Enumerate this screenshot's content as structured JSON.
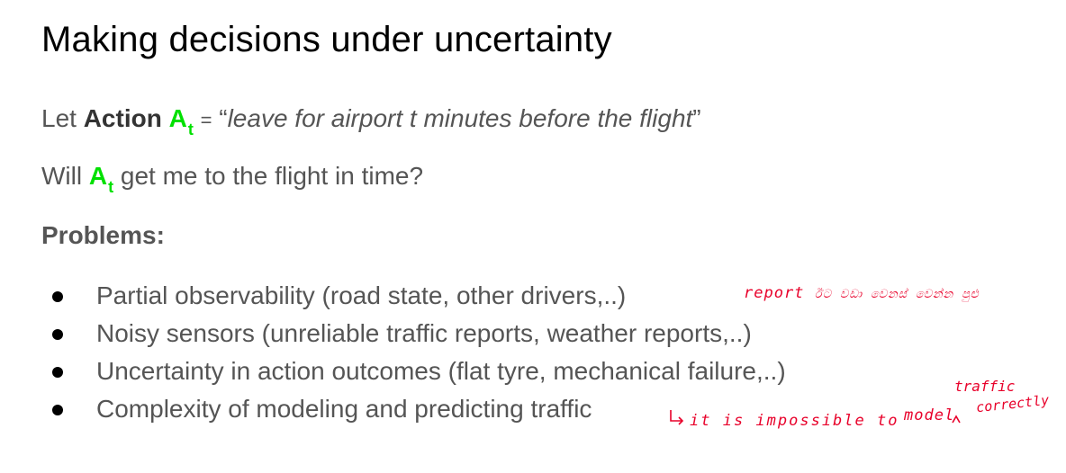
{
  "slide": {
    "title": "Making decisions under uncertainty",
    "action_line": {
      "prefix": "Let ",
      "action_word": "Action",
      "symbol": "A",
      "subscript": "t",
      "equals": "=",
      "quote_open": "“",
      "definition": "leave for airport t minutes before the flight",
      "quote_close": "”"
    },
    "question_line": {
      "prefix": "Will ",
      "symbol": "A",
      "subscript": "t",
      "suffix": "get me to the flight in time?"
    },
    "problems_heading": "Problems:",
    "bullets": [
      "Partial observability (road state, other drivers,..)",
      "Noisy sensors (unreliable traffic reports, weather reports,..)",
      "Uncertainty in action outcomes (flat tyre, mechanical failure,..)",
      "Complexity of modeling and predicting traffic"
    ],
    "annotations": {
      "note_1_latin": "report",
      "note_1_other": "ඊට වඩා වෙනස් වෙන්න පුළු",
      "note_2": "it is impossible to",
      "note_3": "model",
      "note_4": "traffic",
      "note_5": "correctly"
    },
    "colors": {
      "accent_green": "#00e000",
      "annotation_red": "#e8002a",
      "body_text": "#555555"
    }
  }
}
